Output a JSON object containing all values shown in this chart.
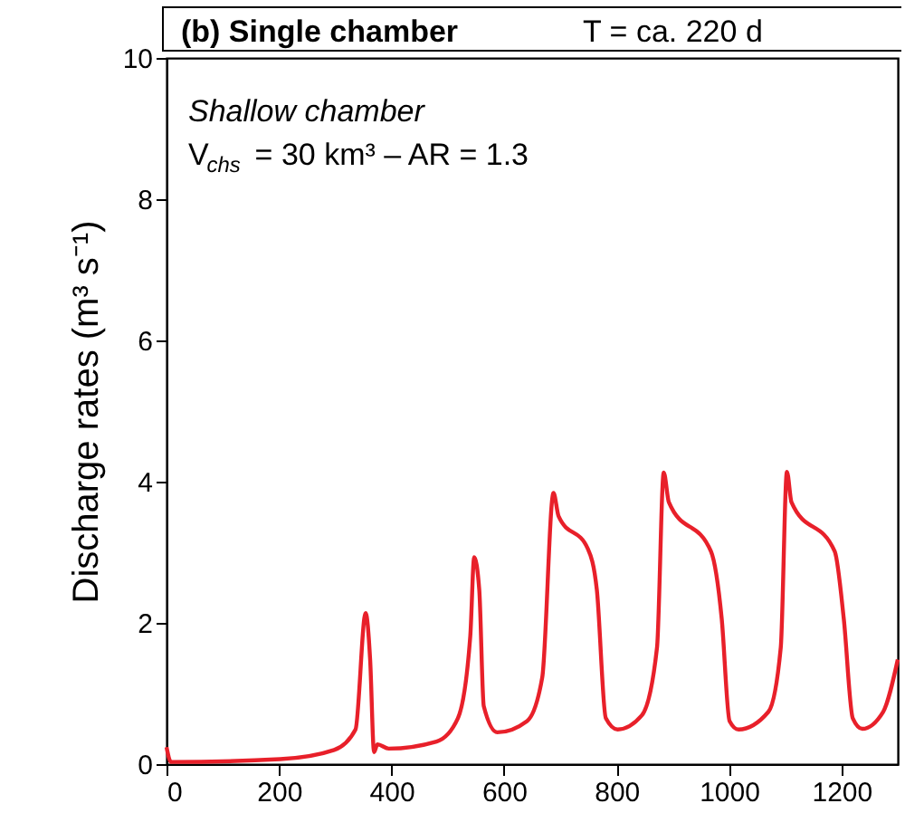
{
  "chart_data": {
    "type": "line",
    "title": "(b) Single chamber",
    "subtitle": "T = ca. 220 d",
    "ylabel": "Discharge rates (m³ s⁻¹)",
    "annotations": [
      "Shallow chamber",
      "V$_{chs}$ = 30 km³ – AR = 1.3"
    ],
    "xlim": [
      0,
      1300
    ],
    "xticks": [
      0,
      200,
      400,
      600,
      800,
      1000,
      1200
    ],
    "ylim": [
      0,
      10
    ],
    "yticks": [
      0,
      2,
      4,
      6,
      8,
      10
    ],
    "grid": false,
    "line_style": "solid",
    "marker": "none",
    "series": [
      {
        "color": "#e8202a",
        "x": [
          0,
          8,
          202,
          298,
          336,
          354,
          362,
          369,
          375,
          395,
          480,
          518,
          540,
          547,
          556,
          564,
          588,
          641,
          668,
          688,
          697,
          749,
          765,
          781,
          802,
          845,
          872,
          884,
          893,
          968,
          987,
          1001,
          1017,
          1070,
          1092,
          1103,
          1111,
          1188,
          1204,
          1220,
          1237,
          1274,
          1300
        ],
        "values": [
          0.24,
          0.03,
          0.07,
          0.2,
          0.49,
          2.14,
          1.48,
          0.17,
          0.28,
          0.22,
          0.32,
          0.65,
          1.81,
          2.93,
          2.47,
          0.82,
          0.45,
          0.61,
          1.23,
          3.84,
          3.51,
          3.05,
          2.47,
          0.65,
          0.49,
          0.69,
          1.65,
          4.13,
          3.71,
          3.01,
          2.06,
          0.61,
          0.49,
          0.74,
          1.65,
          4.14,
          3.71,
          3.01,
          2.06,
          0.65,
          0.5,
          0.74,
          1.48
        ]
      }
    ]
  }
}
